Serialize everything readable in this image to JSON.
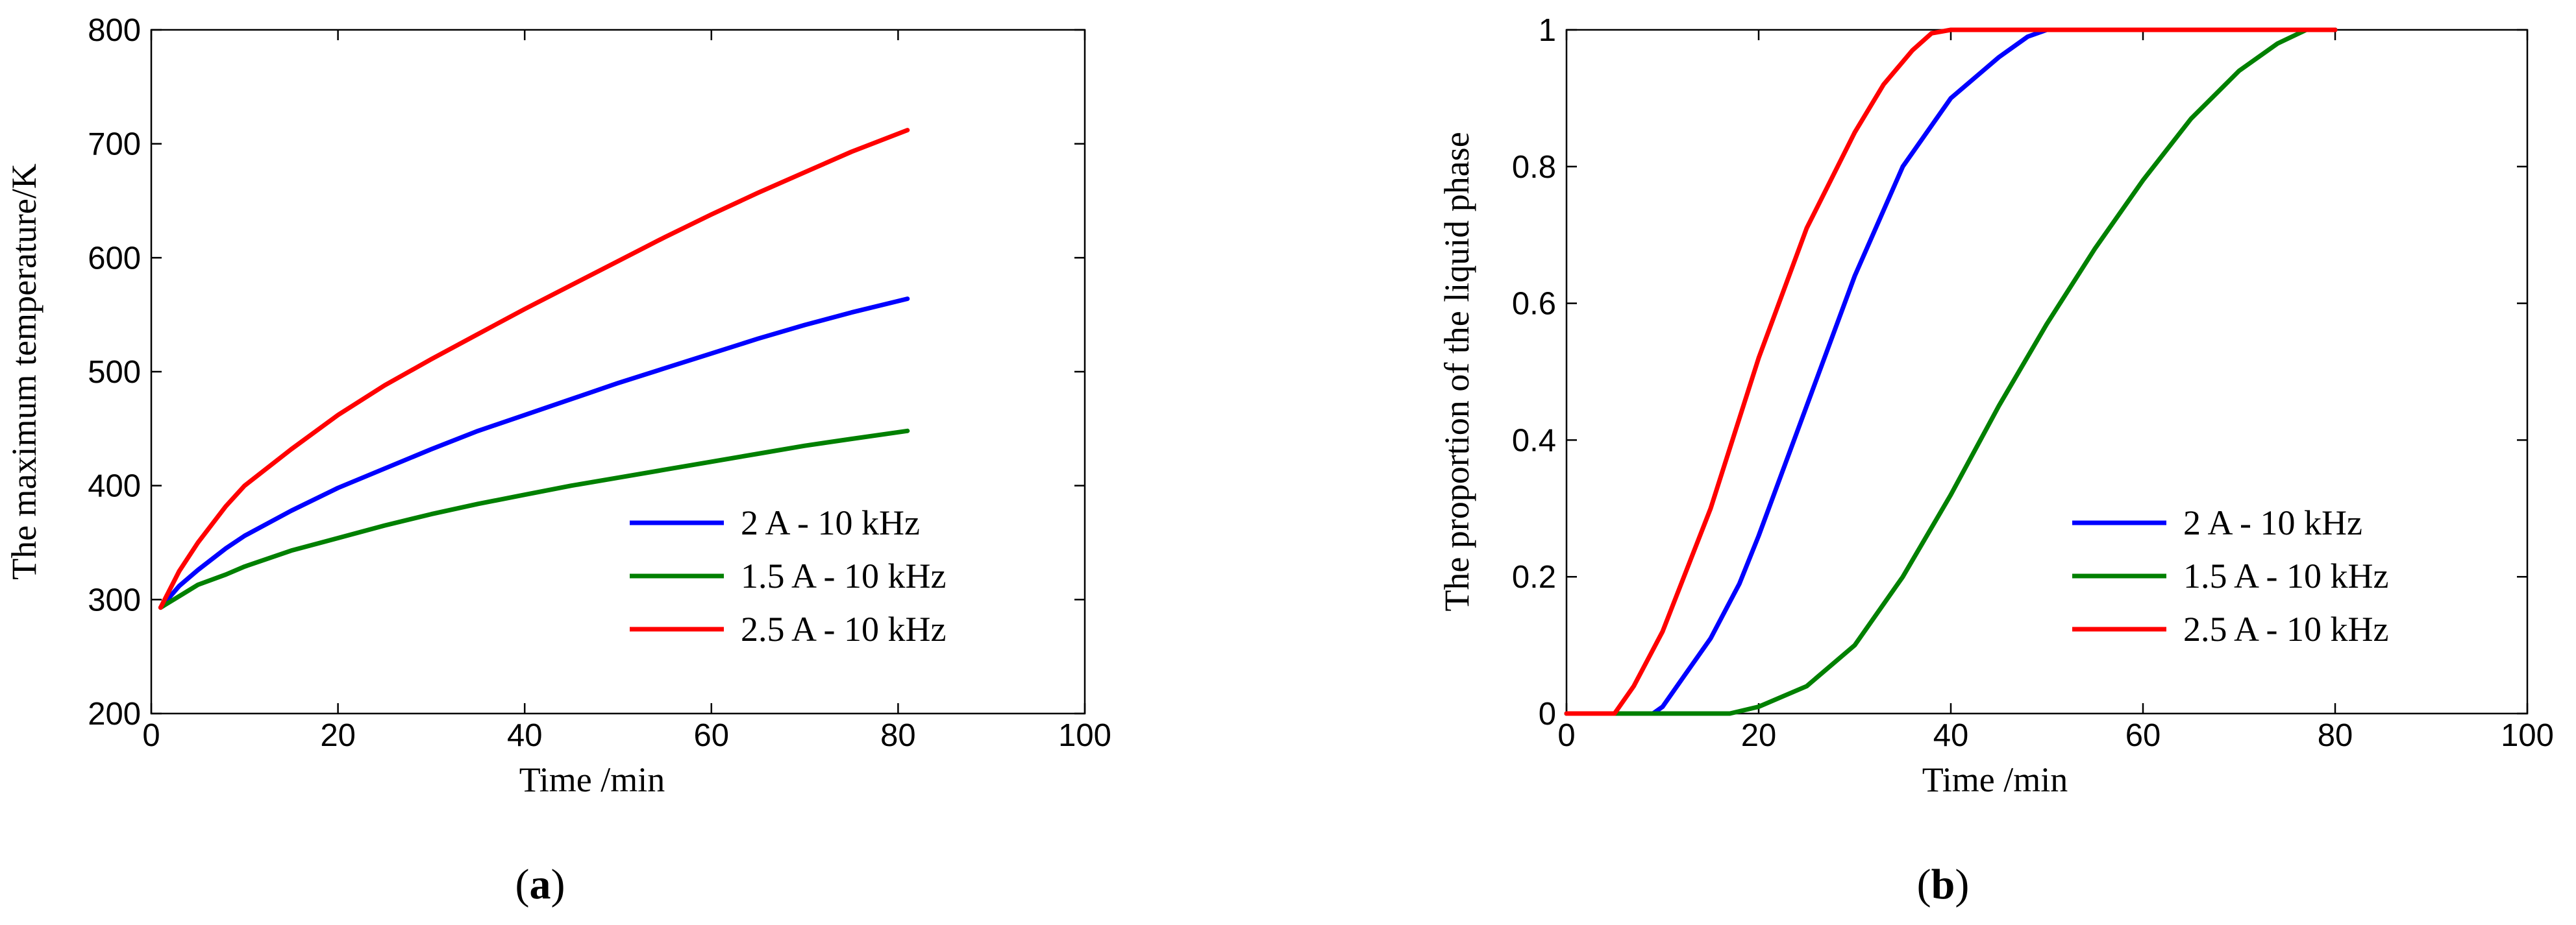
{
  "chart_data": [
    {
      "type": "line",
      "panel": "a",
      "caption_open": "(",
      "caption_letter": "a",
      "caption_close": ")",
      "xlabel": "Time /min",
      "ylabel": "The maximum temperature/K",
      "xlim": [
        0,
        100
      ],
      "ylim": [
        200,
        800
      ],
      "xticks": [
        0,
        20,
        40,
        60,
        80,
        100
      ],
      "yticks": [
        200,
        300,
        400,
        500,
        600,
        700,
        800
      ],
      "legend_position": "bottom-right",
      "series": [
        {
          "name": "2 A - 10 kHz",
          "color": "#0000ff",
          "x": [
            1,
            3,
            5,
            8,
            10,
            15,
            20,
            25,
            30,
            35,
            40,
            45,
            50,
            55,
            60,
            65,
            70,
            75,
            81
          ],
          "y": [
            293,
            312,
            326,
            345,
            356,
            378,
            398,
            415,
            432,
            448,
            462,
            476,
            490,
            503,
            516,
            529,
            541,
            552,
            564
          ]
        },
        {
          "name": "1.5 A - 10 kHz",
          "color": "#008000",
          "x": [
            1,
            3,
            5,
            8,
            10,
            15,
            20,
            25,
            30,
            35,
            40,
            45,
            50,
            55,
            60,
            65,
            70,
            75,
            81
          ],
          "y": [
            293,
            303,
            313,
            322,
            329,
            343,
            354,
            365,
            375,
            384,
            392,
            400,
            407,
            414,
            421,
            428,
            435,
            441,
            448
          ]
        },
        {
          "name": "2.5 A - 10 kHz",
          "color": "#ff0000",
          "x": [
            1,
            3,
            5,
            8,
            10,
            15,
            20,
            25,
            30,
            35,
            40,
            45,
            50,
            55,
            60,
            65,
            70,
            75,
            81
          ],
          "y": [
            293,
            325,
            350,
            382,
            400,
            432,
            462,
            488,
            511,
            533,
            555,
            576,
            597,
            618,
            638,
            657,
            675,
            693,
            712
          ]
        }
      ]
    },
    {
      "type": "line",
      "panel": "b",
      "caption_open": "(",
      "caption_letter": "b",
      "caption_close": ")",
      "xlabel": "Time /min",
      "ylabel": "The proportion of the liquid phase",
      "xlim": [
        0,
        100
      ],
      "ylim": [
        0,
        1
      ],
      "xticks": [
        0,
        20,
        40,
        60,
        80,
        100
      ],
      "yticks": [
        0,
        0.2,
        0.4,
        0.6,
        0.8,
        1
      ],
      "ytick_labels": [
        "0",
        "0.2",
        "0.4",
        "0.6",
        "0.8",
        "1"
      ],
      "legend_position": "bottom-right",
      "series": [
        {
          "name": "2 A - 10 kHz",
          "color": "#0000ff",
          "x": [
            0,
            9,
            10,
            12,
            15,
            18,
            20,
            25,
            30,
            35,
            40,
            45,
            48,
            50,
            55,
            80
          ],
          "y": [
            0,
            0,
            0.01,
            0.05,
            0.11,
            0.19,
            0.26,
            0.45,
            0.64,
            0.8,
            0.9,
            0.96,
            0.99,
            1.0,
            1.0,
            1.0
          ]
        },
        {
          "name": "1.5 A - 10 kHz",
          "color": "#008000",
          "x": [
            0,
            17,
            20,
            25,
            30,
            35,
            40,
            45,
            50,
            55,
            60,
            65,
            70,
            74,
            77,
            80
          ],
          "y": [
            0,
            0,
            0.01,
            0.04,
            0.1,
            0.2,
            0.32,
            0.45,
            0.57,
            0.68,
            0.78,
            0.87,
            0.94,
            0.98,
            1.0,
            1.0
          ]
        },
        {
          "name": "2.5 A - 10 kHz",
          "color": "#ff0000",
          "x": [
            0,
            5,
            7,
            10,
            15,
            20,
            25,
            30,
            33,
            36,
            38,
            40,
            60,
            80
          ],
          "y": [
            0,
            0,
            0.04,
            0.12,
            0.3,
            0.52,
            0.71,
            0.85,
            0.92,
            0.97,
            0.995,
            1.0,
            1.0,
            1.0
          ]
        }
      ]
    }
  ]
}
